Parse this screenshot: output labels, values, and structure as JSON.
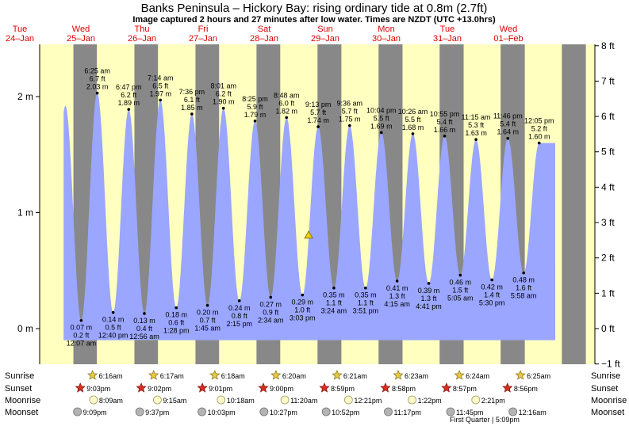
{
  "title": "Banks Peninsula – Hickory Bay: rising  ordinary tide at 0.8m (2.7ft)",
  "subtitle": "Image captured 2 hours and 27 minutes after low water. Times are NZDT (UTC +13.0hrs)",
  "colors": {
    "tide": "#9aa6ff",
    "day": "#ffffc0",
    "night": "#888888",
    "day_label": "#e00000",
    "marker": "#e8d000"
  },
  "chart_data": {
    "type": "area",
    "y_left": {
      "unit": "m",
      "ticks": [
        0,
        1,
        2
      ],
      "labels": [
        "0 m",
        "1 m",
        "2 m"
      ],
      "range": [
        -0.3,
        2.45
      ]
    },
    "y_right": {
      "unit": "ft",
      "ticks": [
        -1,
        0,
        1,
        2,
        3,
        4,
        5,
        6,
        7,
        8
      ],
      "labels": [
        "−1 ft",
        "0 ft",
        "1 ft",
        "2 ft",
        "3 ft",
        "4 ft",
        "5 ft",
        "6 ft",
        "7 ft",
        "8 ft"
      ]
    },
    "days": [
      {
        "name": "Tue",
        "date": "24–Jan"
      },
      {
        "name": "Wed",
        "date": "25–Jan"
      },
      {
        "name": "Thu",
        "date": "26–Jan"
      },
      {
        "name": "Fri",
        "date": "27–Jan"
      },
      {
        "name": "Sat",
        "date": "28–Jan"
      },
      {
        "name": "Sun",
        "date": "29–Jan"
      },
      {
        "name": "Mon",
        "date": "30–Jan"
      },
      {
        "name": "Tue",
        "date": "31–Jan"
      },
      {
        "name": "Wed",
        "date": "01–Feb"
      }
    ],
    "high_tides": [
      {
        "day": 1,
        "time": "6:25 am",
        "ft": "6.7 ft",
        "m": "2.03 m",
        "value": 2.03,
        "h": 6.42
      },
      {
        "day": 1,
        "time": "6:47 pm",
        "ft": "6.2 ft",
        "m": "1.89 m",
        "value": 1.89,
        "h": 18.78
      },
      {
        "day": 2,
        "time": "7:14 am",
        "ft": "6.5 ft",
        "m": "1.97 m",
        "value": 1.97,
        "h": 7.23
      },
      {
        "day": 2,
        "time": "7:36 pm",
        "ft": "6.1 ft",
        "m": "1.85 m",
        "value": 1.85,
        "h": 19.6
      },
      {
        "day": 3,
        "time": "8:01 am",
        "ft": "6.2 ft",
        "m": "1.90 m",
        "value": 1.9,
        "h": 8.02
      },
      {
        "day": 3,
        "time": "8:25 pm",
        "ft": "5.9 ft",
        "m": "1.79 m",
        "value": 1.79,
        "h": 20.42
      },
      {
        "day": 4,
        "time": "8:48 am",
        "ft": "6.0 ft",
        "m": "1.82 m",
        "value": 1.82,
        "h": 8.8
      },
      {
        "day": 4,
        "time": "9:13 pm",
        "ft": "5.7 ft",
        "m": "1.74 m",
        "value": 1.74,
        "h": 21.22
      },
      {
        "day": 5,
        "time": "9:36 am",
        "ft": "5.7 ft",
        "m": "1.75 m",
        "value": 1.75,
        "h": 9.6
      },
      {
        "day": 5,
        "time": "10:04 pm",
        "ft": "5.5 ft",
        "m": "1.69 m",
        "value": 1.69,
        "h": 22.07
      },
      {
        "day": 6,
        "time": "10:26 am",
        "ft": "5.5 ft",
        "m": "1.68 m",
        "value": 1.68,
        "h": 10.43
      },
      {
        "day": 6,
        "time": "10:55 pm",
        "ft": "5.4 ft",
        "m": "1.66 m",
        "value": 1.66,
        "h": 22.92
      },
      {
        "day": 7,
        "time": "11:15 am",
        "ft": "5.3 ft",
        "m": "1.63 m",
        "value": 1.63,
        "h": 11.25
      },
      {
        "day": 7,
        "time": "11:46 pm",
        "ft": "5.4 ft",
        "m": "1.64 m",
        "value": 1.64,
        "h": 23.77
      },
      {
        "day": 8,
        "time": "12:05 pm",
        "ft": "5.2 ft",
        "m": "1.60 m",
        "value": 1.6,
        "h": 12.08
      }
    ],
    "low_tides": [
      {
        "day": 1,
        "time": "12:07 am",
        "ft": "0.2 ft",
        "m": "0.07 m",
        "value": 0.07,
        "h": 0.12
      },
      {
        "day": 1,
        "time": "12:40 pm",
        "ft": "0.5 ft",
        "m": "0.14 m",
        "value": 0.14,
        "h": 12.67
      },
      {
        "day": 2,
        "time": "12:56 am",
        "ft": "0.4 ft",
        "m": "0.13 m",
        "value": 0.13,
        "h": 0.93
      },
      {
        "day": 2,
        "time": "1:28 pm",
        "ft": "0.6 ft",
        "m": "0.18 m",
        "value": 0.18,
        "h": 13.47
      },
      {
        "day": 3,
        "time": "1:45 am",
        "ft": "0.7 ft",
        "m": "0.20 m",
        "value": 0.2,
        "h": 1.75
      },
      {
        "day": 3,
        "time": "2:15 pm",
        "ft": "0.8 ft",
        "m": "0.24 m",
        "value": 0.24,
        "h": 14.25
      },
      {
        "day": 4,
        "time": "2:34 am",
        "ft": "0.9 ft",
        "m": "0.27 m",
        "value": 0.27,
        "h": 2.57
      },
      {
        "day": 4,
        "time": "3:03 pm",
        "ft": "1.0 ft",
        "m": "0.29 m",
        "value": 0.29,
        "h": 15.05
      },
      {
        "day": 5,
        "time": "3:24 am",
        "ft": "1.1 ft",
        "m": "0.35 m",
        "value": 0.35,
        "h": 3.4
      },
      {
        "day": 5,
        "time": "3:51 pm",
        "ft": "1.1 ft",
        "m": "0.35 m",
        "value": 0.35,
        "h": 15.85
      },
      {
        "day": 6,
        "time": "4:15 am",
        "ft": "1.3 ft",
        "m": "0.41 m",
        "value": 0.41,
        "h": 4.25
      },
      {
        "day": 6,
        "time": "4:41 pm",
        "ft": "1.3 ft",
        "m": "0.39 m",
        "value": 0.39,
        "h": 16.68
      },
      {
        "day": 7,
        "time": "5:05 am",
        "ft": "1.5 ft",
        "m": "0.46 m",
        "value": 0.46,
        "h": 5.08
      },
      {
        "day": 7,
        "time": "5:30 pm",
        "ft": "1.4 ft",
        "m": "0.42 m",
        "value": 0.42,
        "h": 17.5
      },
      {
        "day": 8,
        "time": "5:58 am",
        "ft": "1.6 ft",
        "m": "0.48 m",
        "value": 0.48,
        "h": 5.97
      }
    ],
    "current": {
      "value": 0.8,
      "day": 4,
      "h": 17.5
    },
    "rows": [
      "Sunrise",
      "Sunset",
      "Moonrise",
      "Moonset"
    ],
    "sunrise": [
      {
        "day": 1,
        "time": "6:16am",
        "h": 6.27
      },
      {
        "day": 2,
        "time": "6:17am",
        "h": 6.28
      },
      {
        "day": 3,
        "time": "6:18am",
        "h": 6.3
      },
      {
        "day": 4,
        "time": "6:20am",
        "h": 6.33
      },
      {
        "day": 5,
        "time": "6:21am",
        "h": 6.35
      },
      {
        "day": 6,
        "time": "6:23am",
        "h": 6.38
      },
      {
        "day": 7,
        "time": "6:24am",
        "h": 6.4
      },
      {
        "day": 8,
        "time": "6:25am",
        "h": 6.42
      }
    ],
    "sunset": [
      {
        "day": 0,
        "time": "9:03pm",
        "h": 21.05
      },
      {
        "day": 1,
        "time": "9:02pm",
        "h": 21.03
      },
      {
        "day": 2,
        "time": "9:01pm",
        "h": 21.02
      },
      {
        "day": 3,
        "time": "9:00pm",
        "h": 21.0
      },
      {
        "day": 4,
        "time": "8:59pm",
        "h": 20.98
      },
      {
        "day": 5,
        "time": "8:58pm",
        "h": 20.97
      },
      {
        "day": 6,
        "time": "8:57pm",
        "h": 20.95
      },
      {
        "day": 7,
        "time": "8:56pm",
        "h": 20.93
      }
    ],
    "moonrise": [
      {
        "day": 1,
        "time": "8:09am",
        "h": 8.15
      },
      {
        "day": 2,
        "time": "9:15am",
        "h": 9.25
      },
      {
        "day": 3,
        "time": "10:18am",
        "h": 10.3
      },
      {
        "day": 4,
        "time": "11:20am",
        "h": 11.33
      },
      {
        "day": 5,
        "time": "12:21pm",
        "h": 12.35
      },
      {
        "day": 6,
        "time": "1:22pm",
        "h": 13.37
      },
      {
        "day": 7,
        "time": "2:21pm",
        "h": 14.35
      }
    ],
    "moonset": [
      {
        "day": 0,
        "time": "9:09pm",
        "h": 21.15
      },
      {
        "day": 1,
        "time": "9:37pm",
        "h": 21.62
      },
      {
        "day": 2,
        "time": "10:03pm",
        "h": 22.05
      },
      {
        "day": 3,
        "time": "10:27pm",
        "h": 22.45
      },
      {
        "day": 4,
        "time": "10:52pm",
        "h": 22.87
      },
      {
        "day": 5,
        "time": "11:17pm",
        "h": 23.28
      },
      {
        "day": 6,
        "time": "11:45pm",
        "h": 23.75
      },
      {
        "day": 8,
        "time": "12:16am",
        "h": 0.27
      }
    ],
    "moon_phase": {
      "label": "First Quarter | 5:09pm"
    }
  }
}
